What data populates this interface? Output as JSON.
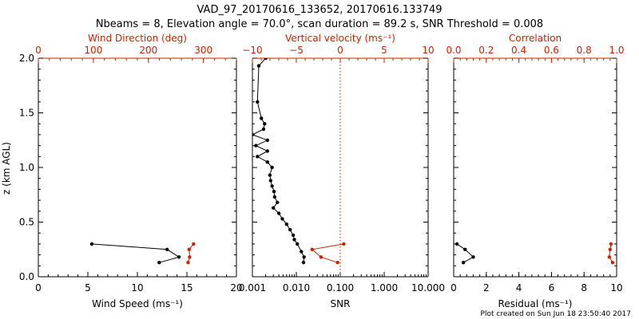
{
  "header": {
    "title_line1": "VAD_97_20170616_133652, 20170616.133749",
    "title_line2": "Nbeams = 8, Elevation angle = 70.0°, scan duration = 89.2 s, SNR Threshold = 0.008"
  },
  "footer": {
    "created": "Plot created on Sun Jun 18 23:50:40 2017"
  },
  "colors": {
    "primary": "#000000",
    "secondary": "#cc2200"
  },
  "chart_data": [
    {
      "type": "line",
      "ylabel": "z (km AGL)",
      "ylim": [
        0,
        2
      ],
      "yticks": [
        0.0,
        0.5,
        1.0,
        1.5,
        2.0
      ],
      "ytick_labels": [
        "0.0",
        "0.5",
        "1.0",
        "1.5",
        "2.0"
      ],
      "bottom_axis": {
        "label": "Wind Speed (ms⁻¹)",
        "lim": [
          0,
          20
        ],
        "ticks": [
          0,
          5,
          10,
          15,
          20
        ],
        "tick_labels": [
          "0",
          "5",
          "10",
          "15",
          "20"
        ]
      },
      "top_axis": {
        "label": "Wind Direction (deg)",
        "lim": [
          0,
          360
        ],
        "ticks": [
          0,
          100,
          200,
          300
        ],
        "tick_labels": [
          "0",
          "100",
          "200",
          "300"
        ]
      },
      "series": [
        {
          "axis": "bottom",
          "color": "#000000",
          "x": [
            12.2,
            14.2,
            13.0,
            5.4
          ],
          "y": [
            0.13,
            0.18,
            0.25,
            0.3
          ]
        },
        {
          "axis": "top",
          "color": "#cc2200",
          "x": [
            272,
            275,
            274,
            282
          ],
          "y": [
            0.13,
            0.18,
            0.25,
            0.3
          ]
        }
      ]
    },
    {
      "type": "line",
      "scale": "log",
      "bottom_axis": {
        "label": "SNR",
        "lim": [
          0.001,
          10
        ],
        "ticks": [
          0.001,
          0.01,
          0.1,
          1,
          10
        ],
        "tick_labels": [
          "0.001",
          "0.010",
          "0.100",
          "1.000",
          "10.000"
        ]
      },
      "top_axis": {
        "label": "Vertical velocity (ms⁻¹)",
        "lim": [
          -10,
          10
        ],
        "ticks": [
          -10,
          -5,
          0,
          5,
          10
        ],
        "tick_labels": [
          "−10",
          "−5",
          "0",
          "5",
          "10"
        ],
        "reference_line": 0
      },
      "series": [
        {
          "axis": "bottom",
          "color": "#000000",
          "x": [
            0.0145,
            0.015,
            0.013,
            0.0105,
            0.009,
            0.0085,
            0.0072,
            0.006,
            0.0048,
            0.004,
            0.003,
            0.0037,
            0.0032,
            0.0031,
            0.0028,
            0.0026,
            0.0025,
            0.0028,
            0.0022,
            0.0013,
            0.0022,
            0.0012,
            0.0022,
            0.001,
            0.0018,
            0.0019,
            0.0016,
            0.0013,
            0.0014,
            0.002
          ],
          "y": [
            0.13,
            0.18,
            0.23,
            0.3,
            0.34,
            0.38,
            0.43,
            0.48,
            0.53,
            0.58,
            0.63,
            0.68,
            0.73,
            0.78,
            0.83,
            0.88,
            0.93,
            1.0,
            1.05,
            1.1,
            1.15,
            1.2,
            1.25,
            1.3,
            1.35,
            1.4,
            1.45,
            1.6,
            1.93,
            2.0
          ]
        },
        {
          "axis": "top",
          "color": "#cc2200",
          "x": [
            -0.3,
            -2.2,
            -3.2,
            0.4
          ],
          "y": [
            0.13,
            0.18,
            0.25,
            0.3
          ]
        }
      ]
    },
    {
      "type": "line",
      "bottom_axis": {
        "label": "Residual (ms⁻¹)",
        "lim": [
          0,
          10
        ],
        "ticks": [
          0,
          2,
          4,
          6,
          8,
          10
        ],
        "tick_labels": [
          "0",
          "2",
          "4",
          "6",
          "8",
          "10"
        ]
      },
      "top_axis": {
        "label": "Correlation",
        "lim": [
          0,
          1
        ],
        "ticks": [
          0,
          0.2,
          0.4,
          0.6,
          0.8,
          1.0
        ],
        "tick_labels": [
          "0.0",
          "0.2",
          "0.4",
          "0.6",
          "0.8",
          "1.0"
        ]
      },
      "series": [
        {
          "axis": "bottom",
          "color": "#000000",
          "x": [
            0.6,
            1.2,
            0.7,
            0.2
          ],
          "y": [
            0.13,
            0.18,
            0.25,
            0.3
          ]
        },
        {
          "axis": "top",
          "color": "#cc2200",
          "x": [
            0.975,
            0.955,
            0.96,
            0.965
          ],
          "y": [
            0.13,
            0.18,
            0.25,
            0.3
          ]
        }
      ]
    }
  ]
}
